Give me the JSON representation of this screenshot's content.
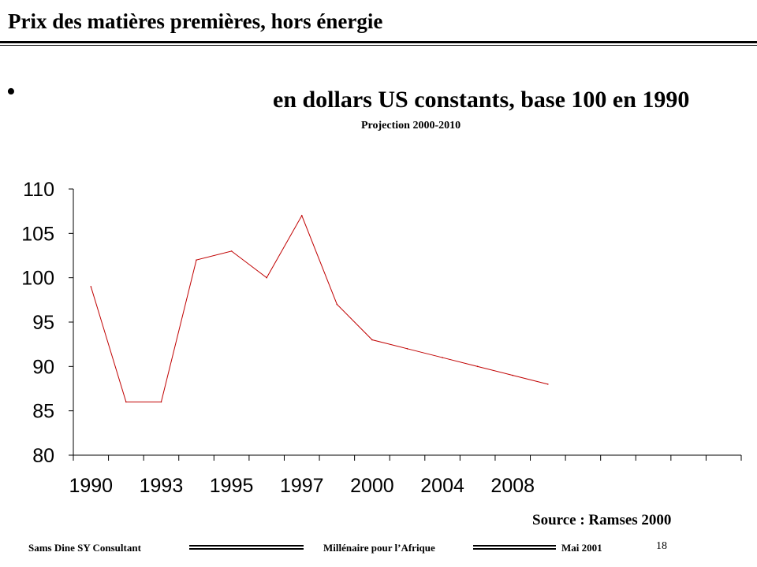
{
  "slide": {
    "title": "Prix des matières premières, hors énergie",
    "bullet": "•",
    "subtitle": "en dollars US constants, base 100 en 1990",
    "projection_note": "Projection 2000-2010",
    "source": "Source : Ramses 2000"
  },
  "footer": {
    "author": "Sams Dine SY Consultant",
    "center": "Millénaire pour l’Afrique",
    "date": "Mai 2001",
    "page_number": "18"
  },
  "chart_data": {
    "type": "line",
    "title": "",
    "xlabel": "",
    "ylabel": "",
    "ylim": [
      80,
      110
    ],
    "y_ticks": [
      80,
      85,
      90,
      95,
      100,
      105,
      110
    ],
    "x_tick_labels": [
      "1990",
      "1993",
      "1995",
      "1997",
      "2000",
      "2004",
      "2008"
    ],
    "x_tick_label_slots": [
      0,
      2,
      4,
      6,
      8,
      10,
      12
    ],
    "category_slots": 19,
    "series": [
      {
        "color": "#c00000",
        "points": [
          {
            "slot": 0,
            "value": 99
          },
          {
            "slot": 1,
            "value": 86
          },
          {
            "slot": 2,
            "value": 86
          },
          {
            "slot": 3,
            "value": 102
          },
          {
            "slot": 4,
            "value": 103
          },
          {
            "slot": 5,
            "value": 100
          },
          {
            "slot": 6,
            "value": 107
          },
          {
            "slot": 7,
            "value": 97
          },
          {
            "slot": 8,
            "value": 93
          },
          {
            "slot": 9,
            "value": 92
          },
          {
            "slot": 10,
            "value": 91
          },
          {
            "slot": 11,
            "value": 90
          },
          {
            "slot": 12,
            "value": 89
          },
          {
            "slot": 13,
            "value": 88
          }
        ]
      }
    ],
    "grid": false,
    "legend": "none"
  }
}
